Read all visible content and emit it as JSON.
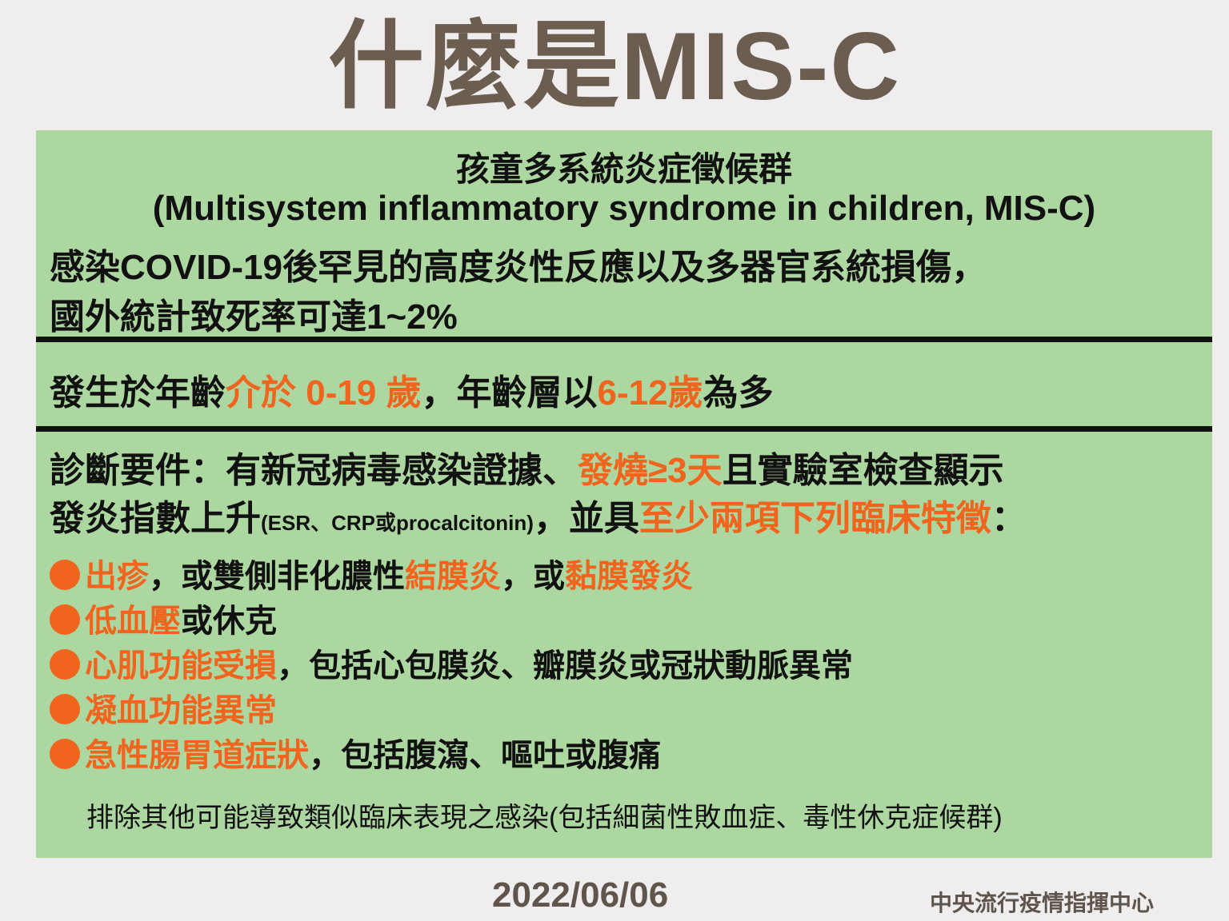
{
  "title": "什麼是MIS-C",
  "header": {
    "zh_name": "孩童多系統炎症徵候群",
    "en_name": "(Multisystem inflammatory syndrome in children, MIS-C)",
    "desc_lines": [
      [
        {
          "t": "感染COVID-19後罕見的高度炎性反應以及多器官系統損傷，"
        }
      ],
      [
        {
          "t": "國外統計致死率可達1~2%"
        }
      ]
    ]
  },
  "age_line": [
    {
      "t": "發生於年齡"
    },
    {
      "t": "介於 0-19 歲",
      "hl": true
    },
    {
      "t": "，年齡層以"
    },
    {
      "t": "6-12歲",
      "hl": true
    },
    {
      "t": "為多"
    }
  ],
  "diagnosis_lines": [
    [
      {
        "t": "診斷要件：有新冠病毒感染證據、"
      },
      {
        "t": "發燒≥3天",
        "hl": true
      },
      {
        "t": "且實驗室檢查顯示"
      }
    ],
    [
      {
        "t": "發炎指數上升"
      },
      {
        "t": "(ESR、CRP或procalcitonin)",
        "small": true
      },
      {
        "t": "，並具"
      },
      {
        "t": "至少兩項下列臨床特徵",
        "hl": true
      },
      {
        "t": "："
      }
    ]
  ],
  "bullets": [
    [
      {
        "t": "出疹",
        "hl": true
      },
      {
        "t": "，或雙側非化膿性"
      },
      {
        "t": "結膜炎",
        "hl": true
      },
      {
        "t": "，或"
      },
      {
        "t": "黏膜發炎",
        "hl": true
      }
    ],
    [
      {
        "t": "低血壓",
        "hl": true
      },
      {
        "t": "或休克"
      }
    ],
    [
      {
        "t": "心肌功能受損",
        "hl": true
      },
      {
        "t": "，包括心包膜炎、瓣膜炎或冠狀動脈異常"
      }
    ],
    [
      {
        "t": "凝血功能異常",
        "hl": true
      }
    ],
    [
      {
        "t": "急性腸胃道症狀",
        "hl": true
      },
      {
        "t": "，包括腹瀉、嘔吐或腹痛"
      }
    ]
  ],
  "exclusion": "排除其他可能導致類似臨床表現之感染(包括細菌性敗血症、毒性休克症候群)",
  "footer": {
    "date": "2022/06/06",
    "org": "中央流行疫情指揮中心"
  },
  "colors": {
    "highlight": "#f0641e",
    "panel": "#add7a0",
    "title": "#6b5d50"
  }
}
